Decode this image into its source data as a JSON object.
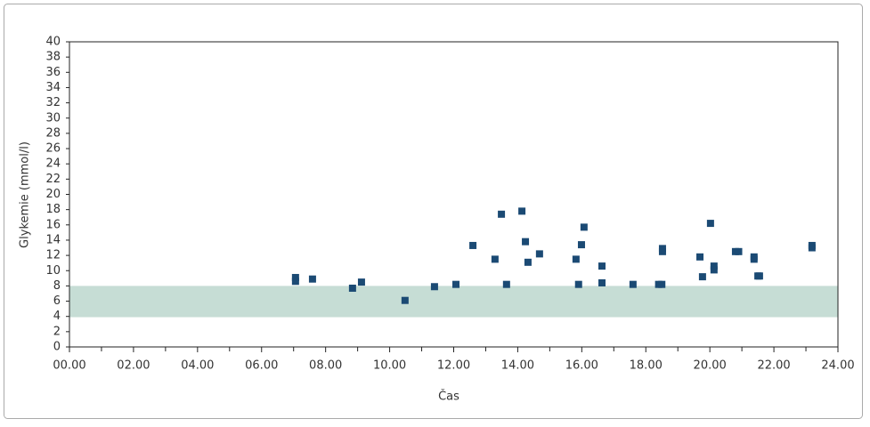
{
  "chart_data": {
    "type": "scatter",
    "x_label": "Čas",
    "y_label": "Glykemie (mmol/l)",
    "series": [
      {
        "color": "#1b4a74",
        "x": [
          7.06,
          7.06,
          7.59,
          8.84,
          9.12,
          10.48,
          11.4,
          12.07,
          12.6,
          13.29,
          13.49,
          13.65,
          14.13,
          14.24,
          14.32,
          14.68,
          15.82,
          15.9,
          15.99,
          16.07,
          16.63,
          16.63,
          17.6,
          18.4,
          18.5,
          18.52,
          18.52,
          19.69,
          19.77,
          20.02,
          20.13,
          20.13,
          20.8,
          20.9,
          21.38,
          21.38,
          21.5,
          21.55,
          23.19,
          23.19
        ],
        "values": [
          9.1,
          8.6,
          8.9,
          7.7,
          8.5,
          6.1,
          7.9,
          8.2,
          13.3,
          11.5,
          17.4,
          8.2,
          17.8,
          13.8,
          11.1,
          12.2,
          11.5,
          8.2,
          13.4,
          15.7,
          10.6,
          8.4,
          8.2,
          8.2,
          8.2,
          12.9,
          12.5,
          11.8,
          9.2,
          16.2,
          10.6,
          10.1,
          12.5,
          12.5,
          11.8,
          11.5,
          9.3,
          9.3,
          13.3,
          13.0
        ]
      }
    ],
    "target_band": {
      "range": [
        3.9,
        8
      ],
      "color": "#c6ddd5"
    },
    "xlim": [
      0,
      24
    ],
    "xticks": [
      {
        "value": 0,
        "label": "00.00"
      },
      {
        "value": 2,
        "label": "02.00"
      },
      {
        "value": 4,
        "label": "04.00"
      },
      {
        "value": 6,
        "label": "06.00"
      },
      {
        "value": 8,
        "label": "08.00"
      },
      {
        "value": 10,
        "label": "10.00"
      },
      {
        "value": 12,
        "label": "12.00"
      },
      {
        "value": 14,
        "label": "14.00"
      },
      {
        "value": 16,
        "label": "16.00"
      },
      {
        "value": 18,
        "label": "18.00"
      },
      {
        "value": 20,
        "label": "20.00"
      },
      {
        "value": 22,
        "label": "22.00"
      },
      {
        "value": 24,
        "label": "24.00"
      }
    ],
    "xminor": [
      1,
      3,
      5,
      7,
      9,
      11,
      13,
      15,
      17,
      19,
      21,
      23
    ],
    "ylim": [
      0,
      40
    ],
    "yticks": [
      0,
      2,
      4,
      6,
      8,
      10,
      12,
      14,
      16,
      18,
      20,
      22,
      24,
      26,
      28,
      30,
      32,
      34,
      36,
      38,
      40
    ]
  }
}
